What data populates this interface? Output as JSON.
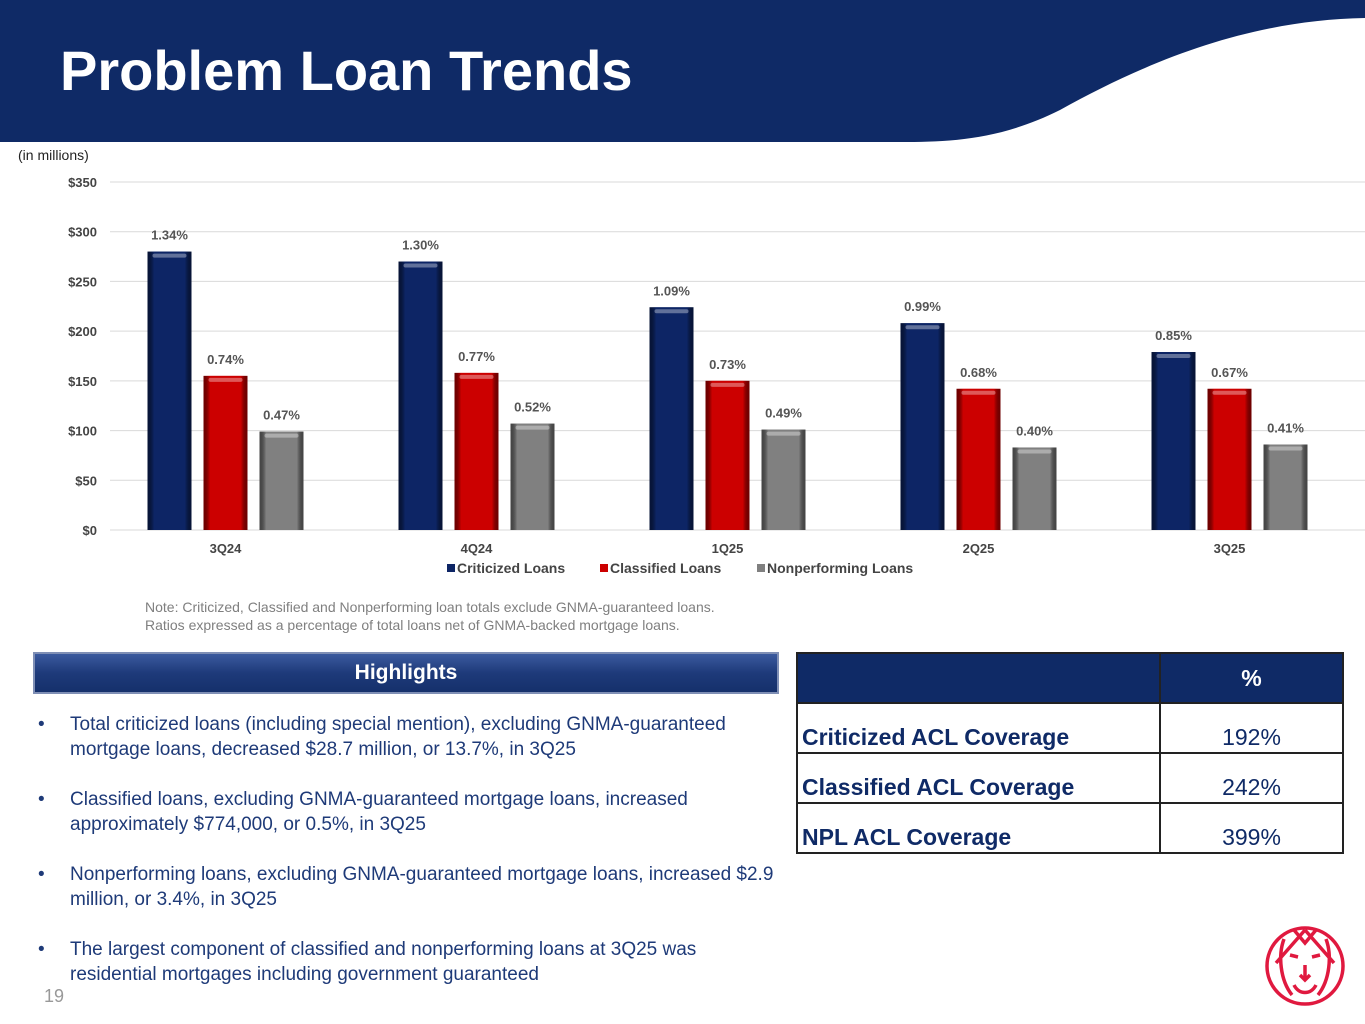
{
  "header": {
    "title": "Problem Loan Trends",
    "units": "(in millions)"
  },
  "colors": {
    "navy": "#0f2a66",
    "criticized": "#0d2565",
    "classified": "#cc0000",
    "nonperforming": "#808080",
    "logo": "#e0193f"
  },
  "chart_data": {
    "type": "bar",
    "categories": [
      "3Q24",
      "4Q24",
      "1Q25",
      "2Q25",
      "3Q25"
    ],
    "ylim": [
      0,
      350
    ],
    "yticks": [
      "$0",
      "$50",
      "$100",
      "$150",
      "$200",
      "$250",
      "$300",
      "$350"
    ],
    "ytick_values": [
      0,
      50,
      100,
      150,
      200,
      250,
      300,
      350
    ],
    "grid": true,
    "legend": "bottom",
    "series": [
      {
        "name": "Criticized Loans",
        "values": [
          280,
          270,
          224,
          208,
          179
        ],
        "labels": [
          "1.34%",
          "1.30%",
          "1.09%",
          "0.99%",
          "0.85%"
        ]
      },
      {
        "name": "Classified Loans",
        "values": [
          155,
          158,
          150,
          142,
          142
        ],
        "labels": [
          "0.74%",
          "0.77%",
          "0.73%",
          "0.68%",
          "0.67%"
        ]
      },
      {
        "name": "Nonperforming Loans",
        "values": [
          99,
          107,
          101,
          83,
          86
        ],
        "labels": [
          "0.47%",
          "0.52%",
          "0.49%",
          "0.40%",
          "0.41%"
        ]
      }
    ]
  },
  "note": {
    "line1": "Note: Criticized, Classified and Nonperforming loan totals exclude GNMA-guaranteed loans.",
    "line2": "Ratios expressed as a percentage of total loans net of GNMA-backed mortgage loans."
  },
  "highlights": {
    "title": "Highlights",
    "items": [
      "Total criticized loans (including special mention), excluding GNMA-guaranteed mortgage loans, decreased $28.7 million, or 13.7%, in 3Q25",
      "Classified loans, excluding GNMA-guaranteed mortgage loans, increased approximately $774,000, or 0.5%, in 3Q25",
      "Nonperforming loans, excluding GNMA-guaranteed mortgage loans, increased $2.9 million, or 3.4%, in 3Q25",
      "The largest component of classified and nonperforming loans at 3Q25 was residential mortgages including government guaranteed"
    ]
  },
  "coverage": {
    "header": "%",
    "rows": [
      {
        "label": "Criticized ACL Coverage",
        "value": "192%"
      },
      {
        "label": "Classified ACL Coverage",
        "value": "242%"
      },
      {
        "label": "NPL ACL Coverage",
        "value": "399%"
      }
    ]
  },
  "page_number": "19"
}
